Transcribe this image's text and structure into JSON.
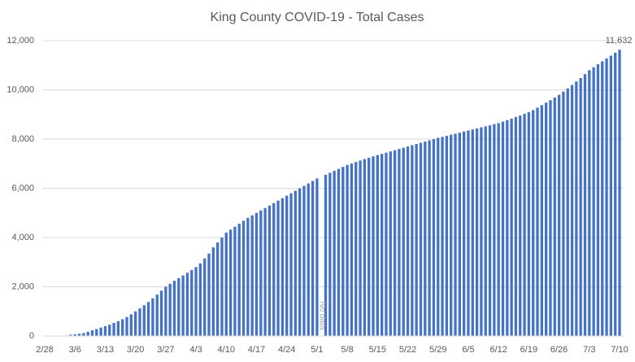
{
  "chart_data": {
    "type": "bar",
    "title": "King County COVID-19 - Total Cases",
    "categories": [
      "2/28",
      null,
      null,
      null,
      null,
      null,
      null,
      "3/6",
      null,
      null,
      null,
      null,
      null,
      null,
      "3/13",
      null,
      null,
      null,
      null,
      null,
      null,
      "3/20",
      null,
      null,
      null,
      null,
      null,
      null,
      "3/27",
      null,
      null,
      null,
      null,
      null,
      null,
      "4/3",
      null,
      null,
      null,
      null,
      null,
      null,
      "4/10",
      null,
      null,
      null,
      null,
      null,
      null,
      "4/17",
      null,
      null,
      null,
      null,
      null,
      null,
      "4/24",
      null,
      null,
      null,
      null,
      null,
      null,
      "5/1",
      null,
      null,
      null,
      null,
      null,
      null,
      "5/8",
      null,
      null,
      null,
      null,
      null,
      null,
      "5/15",
      null,
      null,
      null,
      null,
      null,
      null,
      "5/22",
      null,
      null,
      null,
      null,
      null,
      null,
      "5/29",
      null,
      null,
      null,
      null,
      null,
      null,
      "6/5",
      null,
      null,
      null,
      null,
      null,
      null,
      "6/12",
      null,
      null,
      null,
      null,
      null,
      null,
      "6/19",
      null,
      null,
      null,
      null,
      null,
      null,
      "6/26",
      null,
      null,
      null,
      null,
      null,
      null,
      "7/3",
      null,
      null,
      null,
      null,
      null,
      null,
      "7/10"
    ],
    "values": [
      1,
      1,
      2,
      5,
      10,
      20,
      50,
      70,
      90,
      120,
      170,
      230,
      280,
      340,
      400,
      460,
      530,
      600,
      680,
      770,
      880,
      1000,
      1120,
      1250,
      1380,
      1530,
      1680,
      1840,
      2000,
      2120,
      2240,
      2350,
      2460,
      2570,
      2680,
      2800,
      2950,
      3150,
      3350,
      3600,
      3800,
      4000,
      4200,
      4320,
      4440,
      4560,
      4680,
      4800,
      4900,
      5000,
      5100,
      5200,
      5300,
      5400,
      5500,
      5600,
      5700,
      5800,
      5900,
      6000,
      6100,
      6200,
      6300,
      6400,
      null,
      6550,
      6630,
      6710,
      6790,
      6870,
      6950,
      7010,
      7070,
      7130,
      7190,
      7240,
      7300,
      7350,
      7400,
      7450,
      7500,
      7550,
      7600,
      7650,
      7700,
      7750,
      7800,
      7850,
      7900,
      7950,
      8000,
      8050,
      8090,
      8130,
      8180,
      8220,
      8260,
      8310,
      8350,
      8390,
      8430,
      8480,
      8520,
      8560,
      8610,
      8650,
      8710,
      8770,
      8830,
      8900,
      8960,
      9030,
      9100,
      9180,
      9280,
      9380,
      9480,
      9580,
      9690,
      9800,
      9930,
      10060,
      10200,
      10340,
      10480,
      10640,
      10800,
      10920,
      11040,
      11160,
      11280,
      11390,
      11510,
      11632
    ],
    "value_labels": [
      null,
      null,
      null,
      null,
      null,
      null,
      null,
      null,
      null,
      null,
      null,
      null,
      null,
      null,
      null,
      null,
      null,
      null,
      null,
      null,
      null,
      null,
      null,
      null,
      null,
      null,
      null,
      null,
      null,
      null,
      null,
      null,
      null,
      null,
      null,
      null,
      null,
      null,
      null,
      null,
      null,
      null,
      null,
      null,
      null,
      null,
      null,
      null,
      null,
      null,
      null,
      null,
      null,
      null,
      null,
      null,
      null,
      null,
      null,
      null,
      null,
      null,
      null,
      null,
      null,
      null,
      null,
      null,
      null,
      null,
      null,
      null,
      null,
      null,
      null,
      null,
      null,
      null,
      null,
      null,
      null,
      null,
      null,
      null,
      null,
      null,
      null,
      null,
      null,
      null,
      null,
      null,
      null,
      null,
      null,
      null,
      null,
      null,
      null,
      null,
      null,
      null,
      null,
      null,
      null,
      null,
      null,
      null,
      null,
      null,
      null,
      null,
      null,
      null,
      null,
      null,
      null,
      null,
      null,
      null,
      null,
      null,
      null,
      null,
      null,
      null,
      null,
      null,
      null,
      null,
      null,
      null,
      null,
      "11,632"
    ],
    "annotations": [
      "No data"
    ],
    "color": "#4472c4",
    "ylim": [
      0,
      12000
    ],
    "yticks": [
      0,
      {
        "value": 2000,
        "label": "2,000"
      },
      {
        "value": 4000,
        "label": "4,000"
      },
      {
        "value": 6000,
        "label": "6,000"
      },
      {
        "value": 8000,
        "label": "8,000"
      },
      {
        "value": 10000,
        "label": "10,000"
      },
      {
        "value": 12000,
        "label": "12,000"
      }
    ],
    "grid": true
  }
}
